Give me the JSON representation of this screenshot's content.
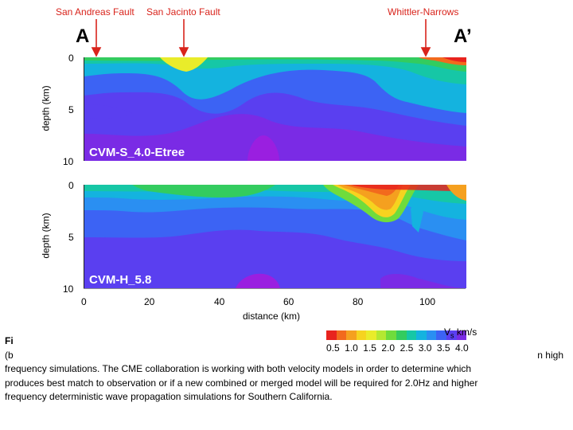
{
  "faults": [
    {
      "label": "San Andreas Fault"
    },
    {
      "label": "San Jacinto Fault"
    },
    {
      "label": "Whittler-Narrows"
    }
  ],
  "profile_endpoints": {
    "start": "A",
    "end": "A’"
  },
  "chart_data": {
    "type": "heatmap",
    "panels": [
      {
        "label": "CVM-S_4.0-Etree",
        "ylabel": "depth (km)",
        "y_ticks": [
          "0",
          "5",
          "10"
        ],
        "ylim": [
          0,
          10
        ]
      },
      {
        "label": "CVM-H_5.8",
        "ylabel": "depth (km)",
        "y_ticks": [
          "0",
          "5",
          "10"
        ],
        "ylim": [
          0,
          10
        ]
      }
    ],
    "xlabel": "distance (km)",
    "x_ticks": [
      "0",
      "20",
      "40",
      "60",
      "80",
      "100"
    ],
    "xlim": [
      0,
      115
    ],
    "colorbar": {
      "label_symbol": "V",
      "label_subscript": "s",
      "label_units": "km/s",
      "ticks": [
        "0.5",
        "1.0",
        "1.5",
        "2.0",
        "2.5",
        "3.0",
        "3.5",
        "4.0"
      ],
      "range": [
        0.5,
        4.0
      ],
      "colors": [
        "#e8231e",
        "#f26a1d",
        "#f5a01f",
        "#f6d31f",
        "#e9ec2a",
        "#b4e832",
        "#6fdc3c",
        "#33cc5f",
        "#16c7a6",
        "#14b3df",
        "#2a8ff2",
        "#3c63f4",
        "#5a3ff0",
        "#7a2be5"
      ]
    }
  },
  "caption": {
    "line1": "Fi",
    "line2_start": "(b",
    "line2_end": "n high",
    "line3": "frequency simulations. The CME collaboration is working with both velocity models in order to determine which",
    "line4": "produces best match to observation or if a new combined or merged model will be required for 2.0Hz and higher",
    "line5": "frequency deterministic wave propagation simulations for Southern California."
  }
}
